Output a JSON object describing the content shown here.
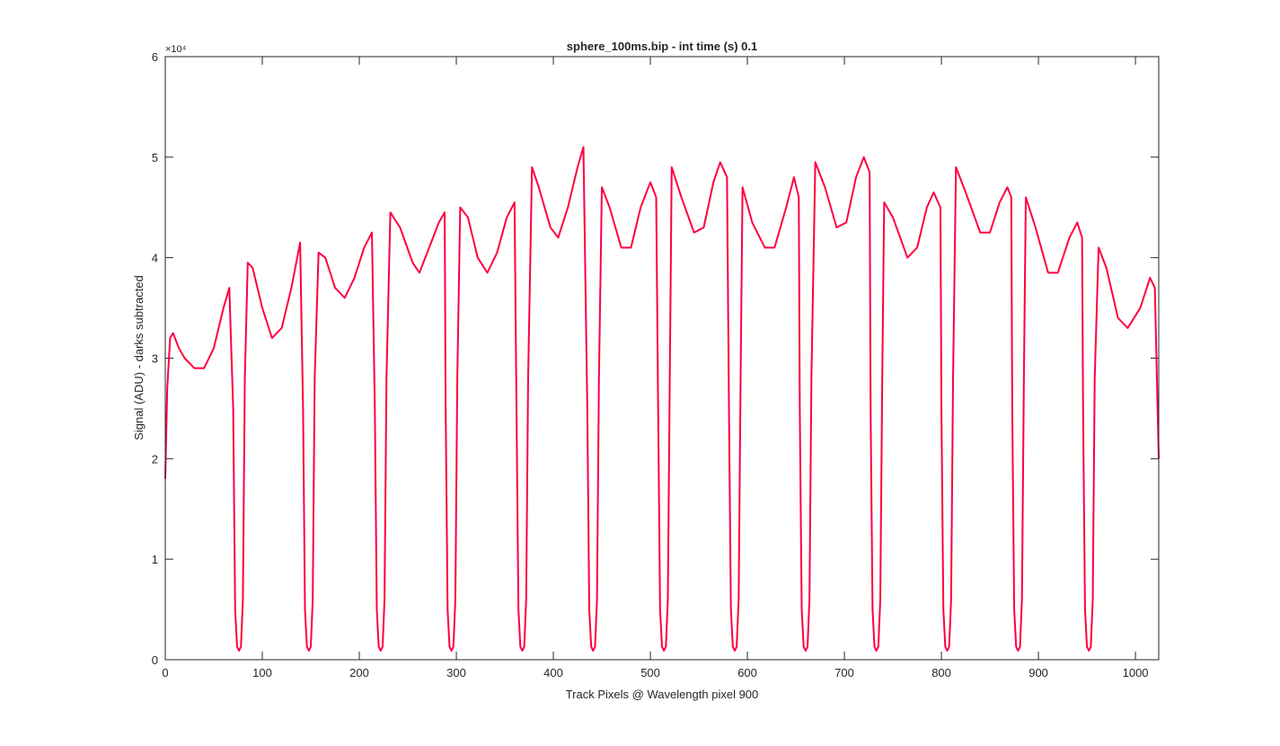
{
  "chart_data": {
    "type": "line",
    "title": "sphere_100ms.bip - int time (s) 0.1",
    "xlabel": "Track Pixels @ Wavelength pixel 900",
    "ylabel": "Signal (ADU) - darks subtracted",
    "y_exponent": "×10⁴",
    "xlim": [
      0,
      1024
    ],
    "xticks": [
      0,
      100,
      200,
      300,
      400,
      500,
      600,
      700,
      800,
      900,
      1000
    ],
    "ylim": [
      0,
      60000
    ],
    "yticks": [
      {
        "value": 0,
        "label": "0"
      },
      {
        "value": 10000,
        "label": "1"
      },
      {
        "value": 20000,
        "label": "2"
      },
      {
        "value": 30000,
        "label": "3"
      },
      {
        "value": 40000,
        "label": "4"
      },
      {
        "value": 50000,
        "label": "5"
      },
      {
        "value": 60000,
        "label": "6"
      }
    ],
    "grid": false,
    "x": [
      0,
      2,
      5,
      8,
      14,
      20,
      30,
      40,
      50,
      60,
      66,
      70,
      72,
      74,
      76,
      78,
      80,
      82,
      85,
      90,
      100,
      110,
      120,
      130,
      139,
      142,
      144,
      146,
      148,
      150,
      152,
      154,
      158,
      165,
      175,
      185,
      195,
      205,
      213,
      216,
      218,
      220,
      222,
      224,
      226,
      228,
      232,
      242,
      255,
      262,
      272,
      282,
      288,
      289,
      291,
      293,
      295,
      297,
      299,
      301,
      304,
      312,
      322,
      332,
      342,
      352,
      360,
      362,
      364,
      366,
      368,
      370,
      372,
      374,
      378,
      385,
      397,
      405,
      415,
      425,
      431,
      435,
      437,
      439,
      441,
      443,
      445,
      447,
      450,
      458,
      470,
      480,
      490,
      500,
      506,
      508,
      510,
      512,
      514,
      516,
      518,
      520,
      522,
      532,
      545,
      555,
      565,
      572,
      579,
      581,
      583,
      585,
      587,
      589,
      591,
      593,
      595,
      605,
      618,
      628,
      640,
      648,
      653,
      654,
      656,
      658,
      660,
      662,
      664,
      666,
      670,
      680,
      692,
      702,
      712,
      720,
      726,
      727,
      729,
      731,
      733,
      735,
      737,
      739,
      741,
      750,
      765,
      775,
      785,
      792,
      799,
      800,
      802,
      804,
      806,
      808,
      810,
      812,
      815,
      825,
      840,
      850,
      860,
      868,
      872,
      873,
      875,
      877,
      879,
      881,
      883,
      885,
      887,
      897,
      910,
      920,
      932,
      940,
      945,
      946,
      948,
      950,
      952,
      954,
      956,
      958,
      962,
      970,
      982,
      992,
      1005,
      1015,
      1020,
      1024
    ],
    "series": [
      {
        "color": "#ff0040",
        "values": [
          18000,
          27000,
          32000,
          32500,
          31000,
          30000,
          29000,
          29000,
          31000,
          35000,
          37000,
          25000,
          5000,
          1300,
          900,
          1300,
          6000,
          28000,
          39500,
          39000,
          35000,
          32000,
          33000,
          37000,
          41500,
          25000,
          5000,
          1300,
          900,
          1300,
          6000,
          28000,
          40500,
          40000,
          37000,
          36000,
          38000,
          41000,
          42500,
          25000,
          5000,
          1300,
          900,
          1300,
          6000,
          28000,
          44500,
          43000,
          39500,
          38500,
          41000,
          43500,
          44500,
          25000,
          5000,
          1300,
          900,
          1300,
          6000,
          28000,
          45000,
          44000,
          40000,
          38500,
          40500,
          44000,
          45500,
          25000,
          5000,
          1300,
          900,
          1300,
          6000,
          28000,
          49000,
          47000,
          43000,
          42000,
          45000,
          49000,
          51000,
          25000,
          5000,
          1300,
          900,
          1300,
          6000,
          28000,
          47000,
          45000,
          41000,
          41000,
          45000,
          47500,
          46000,
          25000,
          5000,
          1300,
          900,
          1300,
          6000,
          28000,
          49000,
          46000,
          42500,
          43000,
          47500,
          49500,
          48000,
          25000,
          5000,
          1300,
          900,
          1300,
          6000,
          28000,
          47000,
          43500,
          41000,
          41000,
          45000,
          48000,
          46000,
          25000,
          5000,
          1300,
          900,
          1300,
          6000,
          28000,
          49500,
          47000,
          43000,
          43500,
          48000,
          50000,
          48500,
          25000,
          5000,
          1300,
          900,
          1300,
          6000,
          28000,
          45500,
          44000,
          40000,
          41000,
          45000,
          46500,
          45000,
          25000,
          5000,
          1300,
          900,
          1300,
          6000,
          28000,
          49000,
          46500,
          42500,
          42500,
          45500,
          47000,
          46000,
          25000,
          5000,
          1300,
          900,
          1300,
          6000,
          28000,
          46000,
          43000,
          38500,
          38500,
          42000,
          43500,
          42000,
          25000,
          5000,
          1300,
          900,
          1300,
          6000,
          28000,
          41000,
          39000,
          34000,
          33000,
          35000,
          38000,
          37000,
          20000
        ]
      }
    ]
  }
}
